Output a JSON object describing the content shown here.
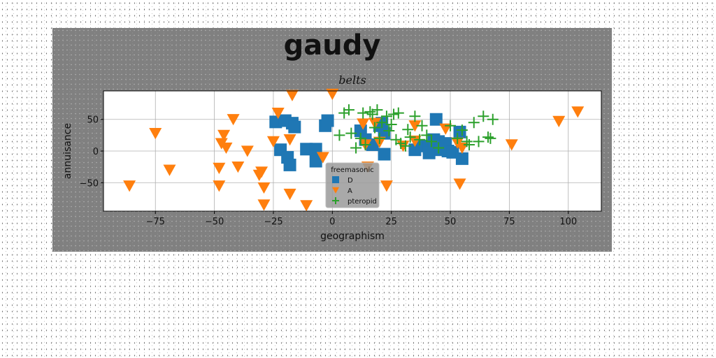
{
  "chart_data": {
    "type": "scatter",
    "title": "gaudy",
    "subtitle": "belts",
    "xlabel": "geographism",
    "ylabel": "annuisance",
    "xlim": [
      -97,
      114
    ],
    "ylim": [
      -95,
      95
    ],
    "xticks": [
      -75,
      -50,
      -25,
      0,
      25,
      50,
      75,
      100
    ],
    "xtick_labels": [
      "−75",
      "−50",
      "−25",
      "0",
      "25",
      "50",
      "75",
      "100"
    ],
    "yticks": [
      -50,
      0,
      50
    ],
    "ytick_labels": [
      "−50",
      "0",
      "50"
    ],
    "grid": true,
    "legend": {
      "title": "freemasonic",
      "placement": "lower-center"
    },
    "series": [
      {
        "name": "D",
        "marker": "square",
        "color": "#1f77b4",
        "points": [
          [
            -24,
            46
          ],
          [
            -20,
            48
          ],
          [
            -17,
            44
          ],
          [
            -16,
            38
          ],
          [
            -22,
            2
          ],
          [
            -19,
            -10
          ],
          [
            -18,
            -22
          ],
          [
            -11,
            3
          ],
          [
            -7,
            3
          ],
          [
            -7,
            -16
          ],
          [
            -3,
            40
          ],
          [
            -2,
            48
          ],
          [
            12,
            32
          ],
          [
            14,
            18
          ],
          [
            17,
            10
          ],
          [
            20,
            40
          ],
          [
            21,
            44
          ],
          [
            22,
            28
          ],
          [
            22,
            -5
          ],
          [
            35,
            2
          ],
          [
            38,
            8
          ],
          [
            41,
            5
          ],
          [
            41,
            -3
          ],
          [
            43,
            18
          ],
          [
            44,
            50
          ],
          [
            45,
            15
          ],
          [
            46,
            2
          ],
          [
            48,
            12
          ],
          [
            49,
            0
          ],
          [
            51,
            -2
          ],
          [
            54,
            30
          ],
          [
            55,
            -12
          ]
        ]
      },
      {
        "name": "A",
        "marker": "triangle_down",
        "color": "#ff7f0e",
        "points": [
          [
            -86,
            -55
          ],
          [
            -75,
            28
          ],
          [
            -69,
            -30
          ],
          [
            -48,
            -55
          ],
          [
            -48,
            -27
          ],
          [
            -47,
            12
          ],
          [
            -46,
            25
          ],
          [
            -45,
            5
          ],
          [
            -42,
            50
          ],
          [
            -40,
            -25
          ],
          [
            -36,
            0
          ],
          [
            -31,
            -38
          ],
          [
            -30,
            -33
          ],
          [
            -29,
            -58
          ],
          [
            -29,
            -85
          ],
          [
            -25,
            15
          ],
          [
            -23,
            60
          ],
          [
            -18,
            18
          ],
          [
            -18,
            -68
          ],
          [
            -17,
            88
          ],
          [
            -11,
            -86
          ],
          [
            -4,
            -10
          ],
          [
            0,
            90
          ],
          [
            13,
            43
          ],
          [
            14,
            10
          ],
          [
            15,
            -25
          ],
          [
            18,
            44
          ],
          [
            20,
            14
          ],
          [
            23,
            -55
          ],
          [
            30,
            8
          ],
          [
            35,
            40
          ],
          [
            35,
            16
          ],
          [
            48,
            35
          ],
          [
            53,
            13
          ],
          [
            54,
            -52
          ],
          [
            55,
            5
          ],
          [
            76,
            10
          ],
          [
            96,
            47
          ],
          [
            104,
            62
          ]
        ]
      },
      {
        "name": "pteropid",
        "marker": "plus",
        "color": "#2ca02c",
        "points": [
          [
            3,
            25
          ],
          [
            5,
            60
          ],
          [
            7,
            65
          ],
          [
            8,
            28
          ],
          [
            10,
            5
          ],
          [
            12,
            20
          ],
          [
            13,
            60
          ],
          [
            14,
            10
          ],
          [
            16,
            62
          ],
          [
            17,
            58
          ],
          [
            18,
            37
          ],
          [
            19,
            65
          ],
          [
            20,
            20
          ],
          [
            21,
            45
          ],
          [
            23,
            55
          ],
          [
            24,
            32
          ],
          [
            25,
            42
          ],
          [
            26,
            58
          ],
          [
            27,
            18
          ],
          [
            28,
            60
          ],
          [
            29,
            12
          ],
          [
            31,
            8
          ],
          [
            32,
            34
          ],
          [
            33,
            22
          ],
          [
            35,
            55
          ],
          [
            37,
            18
          ],
          [
            38,
            40
          ],
          [
            40,
            25
          ],
          [
            42,
            15
          ],
          [
            45,
            5
          ],
          [
            50,
            40
          ],
          [
            53,
            20
          ],
          [
            55,
            33
          ],
          [
            57,
            15
          ],
          [
            58,
            10
          ],
          [
            60,
            45
          ],
          [
            62,
            15
          ],
          [
            64,
            55
          ],
          [
            66,
            22
          ],
          [
            67,
            20
          ],
          [
            68,
            50
          ]
        ]
      }
    ]
  }
}
